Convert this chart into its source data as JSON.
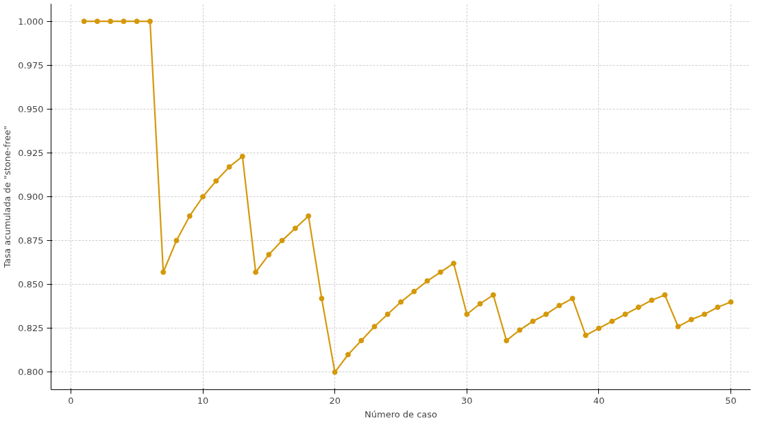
{
  "chart_data": {
    "type": "line",
    "xlabel": "Número de caso",
    "ylabel": "Tasa acumulada de \"stone-free\"",
    "x": [
      1,
      2,
      3,
      4,
      5,
      6,
      7,
      8,
      9,
      10,
      11,
      12,
      13,
      14,
      15,
      16,
      17,
      18,
      19,
      20,
      21,
      22,
      23,
      24,
      25,
      26,
      27,
      28,
      29,
      30,
      31,
      32,
      33,
      34,
      35,
      36,
      37,
      38,
      39,
      40,
      41,
      42,
      43,
      44,
      45,
      46,
      47,
      48,
      49,
      50
    ],
    "series": [
      {
        "color": "#d4980a",
        "values": [
          1.0,
          1.0,
          1.0,
          1.0,
          1.0,
          1.0,
          0.857,
          0.875,
          0.889,
          0.9,
          0.909,
          0.917,
          0.923,
          0.857,
          0.867,
          0.875,
          0.882,
          0.889,
          0.842,
          0.8,
          0.81,
          0.818,
          0.826,
          0.833,
          0.84,
          0.846,
          0.852,
          0.857,
          0.862,
          0.833,
          0.839,
          0.844,
          0.818,
          0.824,
          0.829,
          0.833,
          0.838,
          0.842,
          0.821,
          0.825,
          0.829,
          0.833,
          0.837,
          0.841,
          0.844,
          0.826,
          0.83,
          0.833,
          0.837,
          0.84
        ]
      }
    ],
    "xlim": [
      -1.5,
      51.5
    ],
    "ylim": [
      0.79,
      1.01
    ],
    "xticks": [
      0,
      10,
      20,
      30,
      40,
      50
    ],
    "yticks": [
      {
        "value": 0.8,
        "label": "0.800"
      },
      {
        "value": 0.825,
        "label": "0.825"
      },
      {
        "value": 0.85,
        "label": "0.850"
      },
      {
        "value": 0.875,
        "label": "0.875"
      },
      {
        "value": 0.9,
        "label": "0.900"
      },
      {
        "value": 0.925,
        "label": "0.925"
      },
      {
        "value": 0.95,
        "label": "0.950"
      },
      {
        "value": 0.975,
        "label": "0.975"
      },
      {
        "value": 1.0,
        "label": "1.000"
      }
    ],
    "grid": true,
    "marker": "circle",
    "line_style": "solid"
  }
}
